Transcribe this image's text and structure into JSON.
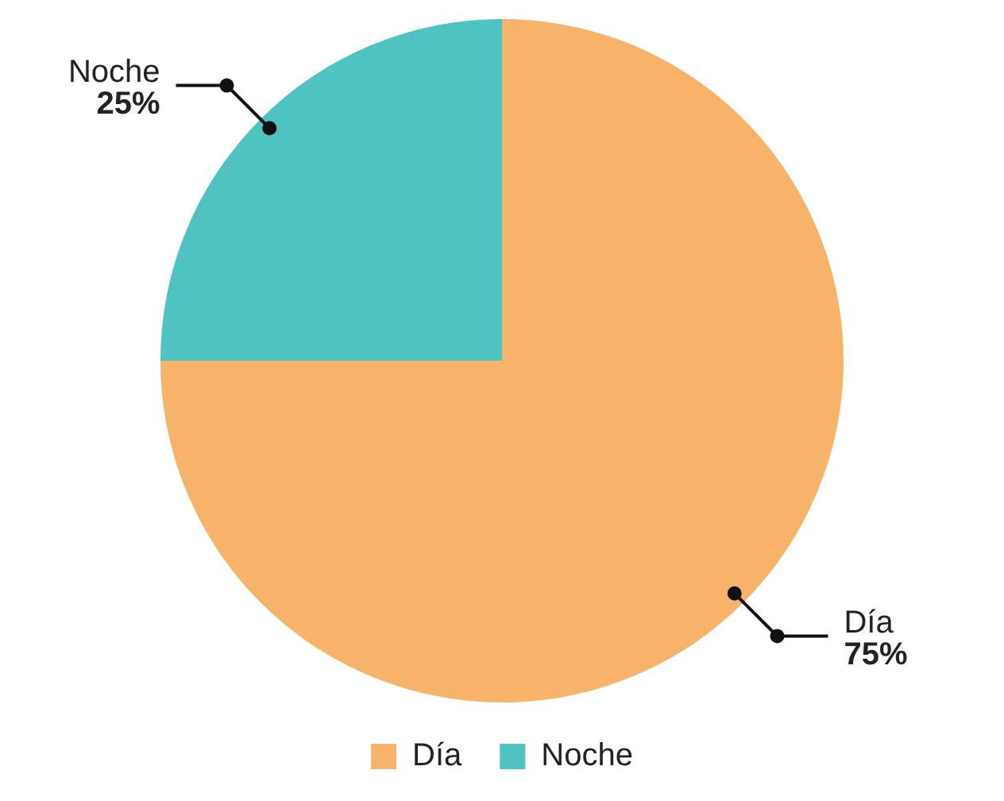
{
  "chart_data": {
    "type": "pie",
    "categories": [
      "Día",
      "Noche"
    ],
    "values": [
      75,
      25
    ],
    "value_labels": [
      "75%",
      "25%"
    ],
    "colors": [
      "#f8b36b",
      "#4fc3c1"
    ],
    "legend": "bottom"
  }
}
